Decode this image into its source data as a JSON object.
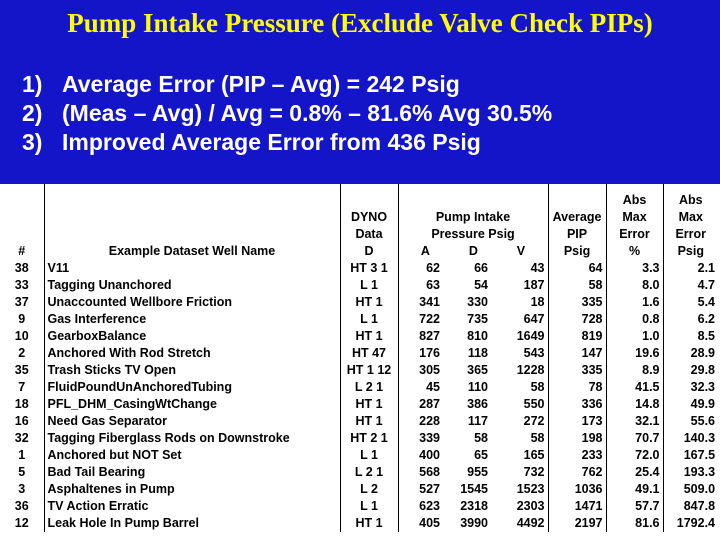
{
  "title": "Pump Intake Pressure (Exclude Valve Check PIPs)",
  "points": [
    {
      "num": "1)",
      "text": "Average Error  (PIP – Avg)   =   242 Psig"
    },
    {
      "num": "2)",
      "text": "(Meas – Avg) / Avg =  0.8% – 81.6%    Avg 30.5%"
    },
    {
      "num": "3)",
      "text": "Improved Average Error from 436 Psig"
    }
  ],
  "table": {
    "headers": {
      "num": "#",
      "name": "Example Dataset Well Name",
      "dyno_1": "DYNO",
      "dyno_2": "Data",
      "dyno_3": "D",
      "pip_1": "Pump Intake",
      "pip_2": "Pressure  Psig",
      "pip_a": "A",
      "pip_d": "D",
      "pip_v": "V",
      "avg_1": "Average",
      "avg_2": "PIP",
      "avg_3": "Psig",
      "absmax_1": "Abs",
      "absmax_2": "Max",
      "absmax_3": "Error",
      "absmax_4": "%",
      "absmaxp_1": "Abs",
      "absmaxp_2": "Max",
      "absmaxp_3": "Error",
      "absmaxp_4": "Psig"
    },
    "rows": [
      {
        "num": "38",
        "name": "V11",
        "dyno": "HT 3 1",
        "a": "62",
        "d": "66",
        "v": "43",
        "avg": "64",
        "pct": "3.3",
        "psig": "2.1"
      },
      {
        "num": "33",
        "name": "Tagging Unanchored",
        "dyno": "L 1",
        "a": "63",
        "d": "54",
        "v": "187",
        "avg": "58",
        "pct": "8.0",
        "psig": "4.7"
      },
      {
        "num": "37",
        "name": "Unaccounted Wellbore Friction",
        "dyno": "HT 1",
        "a": "341",
        "d": "330",
        "v": "18",
        "avg": "335",
        "pct": "1.6",
        "psig": "5.4"
      },
      {
        "num": "9",
        "name": "Gas Interference",
        "dyno": "L 1",
        "a": "722",
        "d": "735",
        "v": "647",
        "avg": "728",
        "pct": "0.8",
        "psig": "6.2"
      },
      {
        "num": "10",
        "name": "GearboxBalance",
        "dyno": "HT 1",
        "a": "827",
        "d": "810",
        "v": "1649",
        "avg": "819",
        "pct": "1.0",
        "psig": "8.5"
      },
      {
        "num": "2",
        "name": "Anchored With Rod Stretch",
        "dyno": "HT 47",
        "a": "176",
        "d": "118",
        "v": "543",
        "avg": "147",
        "pct": "19.6",
        "psig": "28.9"
      },
      {
        "num": "35",
        "name": "Trash Sticks TV Open",
        "dyno": "HT 1 12",
        "a": "305",
        "d": "365",
        "v": "1228",
        "avg": "335",
        "pct": "8.9",
        "psig": "29.8"
      },
      {
        "num": "7",
        "name": "FluidPoundUnAnchoredTubing",
        "dyno": "L 2 1",
        "a": "45",
        "d": "110",
        "v": "58",
        "avg": "78",
        "pct": "41.5",
        "psig": "32.3"
      },
      {
        "num": "18",
        "name": "PFL_DHM_CasingWtChange",
        "dyno": "HT 1",
        "a": "287",
        "d": "386",
        "v": "550",
        "avg": "336",
        "pct": "14.8",
        "psig": "49.9"
      },
      {
        "num": "16",
        "name": "Need Gas Separator",
        "dyno": "HT 1",
        "a": "228",
        "d": "117",
        "v": "272",
        "avg": "173",
        "pct": "32.1",
        "psig": "55.6"
      },
      {
        "num": "32",
        "name": "Tagging Fiberglass Rods on Downstroke",
        "dyno": "HT 2 1",
        "a": "339",
        "d": "58",
        "v": "58",
        "avg": "198",
        "pct": "70.7",
        "psig": "140.3"
      },
      {
        "num": "1",
        "name": "Anchored but NOT Set",
        "dyno": "L 1",
        "a": "400",
        "d": "65",
        "v": "165",
        "avg": "233",
        "pct": "72.0",
        "psig": "167.5"
      },
      {
        "num": "5",
        "name": "Bad Tail Bearing",
        "dyno": "L 2 1",
        "a": "568",
        "d": "955",
        "v": "732",
        "avg": "762",
        "pct": "25.4",
        "psig": "193.3"
      },
      {
        "num": "3",
        "name": "Asphaltenes in Pump",
        "dyno": "L 2",
        "a": "527",
        "d": "1545",
        "v": "1523",
        "avg": "1036",
        "pct": "49.1",
        "psig": "509.0"
      },
      {
        "num": "36",
        "name": "TV Action Erratic",
        "dyno": "L 1",
        "a": "623",
        "d": "2318",
        "v": "2303",
        "avg": "1471",
        "pct": "57.7",
        "psig": "847.8"
      },
      {
        "num": "12",
        "name": "Leak Hole In Pump Barrel",
        "dyno": "HT 1",
        "a": "405",
        "d": "3990",
        "v": "4492",
        "avg": "2197",
        "pct": "81.6",
        "psig": "1792.4"
      }
    ]
  }
}
